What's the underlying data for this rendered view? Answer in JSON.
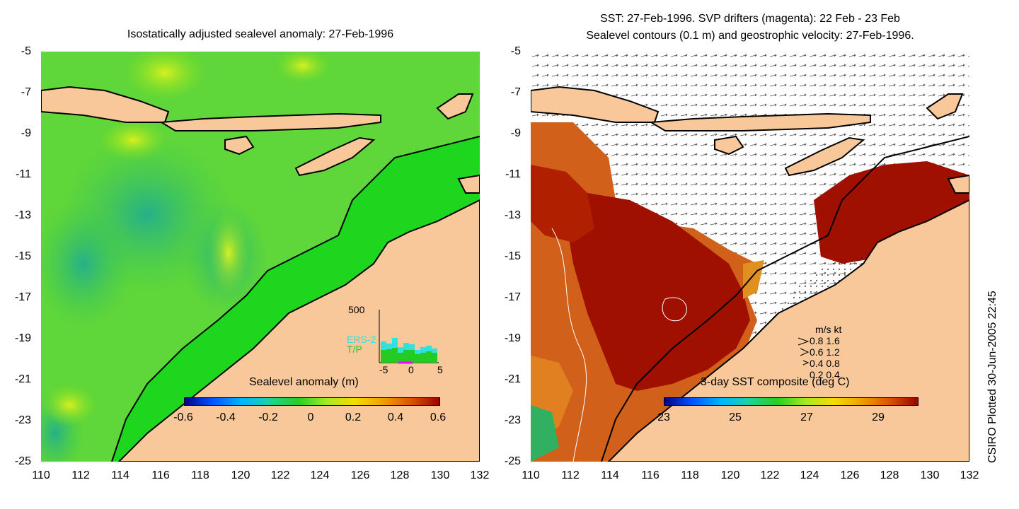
{
  "left_panel": {
    "title": "Isostatically adjusted sealevel anomaly: 27-Feb-1996",
    "colorbar_label": "Sealevel anomaly (m)",
    "colorbar_ticks": [
      "-0.6",
      "-0.4",
      "-0.2",
      "0",
      "0.2",
      "0.4",
      "0.6"
    ],
    "histogram": {
      "ymax_label": "500",
      "x_ticks": [
        "-5",
        "0",
        "5"
      ],
      "series": [
        "ERS-2",
        "T/P"
      ],
      "series_colors": [
        "#33e0e0",
        "#22cc22"
      ]
    }
  },
  "right_panel": {
    "title_line1": "SST: 27-Feb-1996. SVP drifters (magenta): 22 Feb - 23 Feb",
    "title_line2": "Sealevel contours (0.1 m) and geostrophic velocity: 27-Feb-1996.",
    "colorbar_label": "3-day SST composite (deg C)",
    "colorbar_ticks": [
      "23",
      "25",
      "27",
      "29"
    ],
    "velocity_legend": {
      "header": "m/s  kt",
      "rows": [
        "0.8  1.6",
        "0.6  1.2",
        "0.4  0.8",
        "0.2  0.4"
      ]
    }
  },
  "axes": {
    "y_ticks": [
      "-5",
      "-7",
      "-9",
      "-11",
      "-13",
      "-15",
      "-17",
      "-19",
      "-21",
      "-23",
      "-25"
    ],
    "x_ticks": [
      "110",
      "112",
      "114",
      "116",
      "118",
      "120",
      "122",
      "124",
      "126",
      "128",
      "130",
      "132"
    ]
  },
  "credit": "CSIRO Plotted 30-Jun-2005 22:45",
  "colors": {
    "land": "#f9c89a",
    "ocean_green": "#22d022",
    "sst_red": "#a01000",
    "sst_orange": "#d86a1a"
  }
}
